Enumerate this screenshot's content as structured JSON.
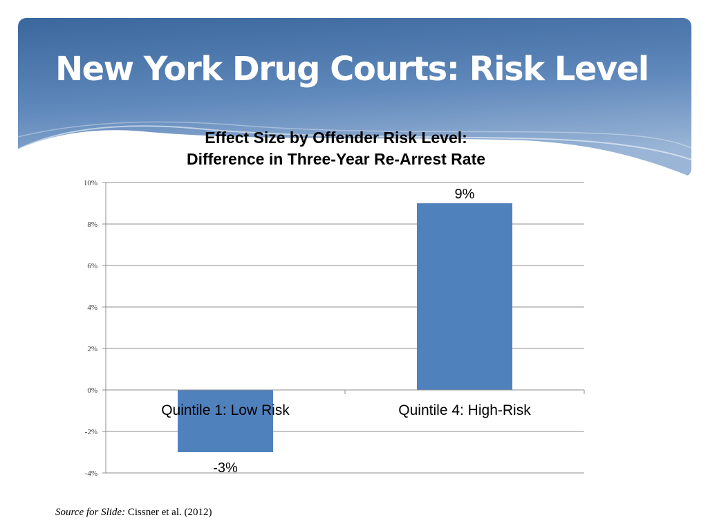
{
  "slide": {
    "title": "New York Drug Courts: Risk Level",
    "source_label": "Source for Slide:",
    "source_text": "Cissner et al. (2012)"
  },
  "colors": {
    "bar": "#4f81bd",
    "grid": "#8c8c8c",
    "header_dark": "#3d6aa0",
    "header_light": "#a9c0dc"
  },
  "chart_data": {
    "type": "bar",
    "title": "Effect Size by Offender Risk Level:",
    "subtitle": "Difference in Three-Year Re-Arrest Rate",
    "xlabel": "",
    "ylabel": "",
    "categories": [
      "Quintile 1: Low Risk",
      "Quintile 4: High-Risk"
    ],
    "values": [
      -3,
      9
    ],
    "value_labels": [
      "-3%",
      "9%"
    ],
    "ylim": [
      -4,
      10
    ],
    "yticks": [
      -4,
      -2,
      0,
      2,
      4,
      6,
      8,
      10
    ],
    "ytick_labels": [
      "-4%",
      "-2%",
      "0%",
      "2%",
      "4%",
      "6%",
      "8%",
      "10%"
    ],
    "grid": true,
    "legend": "none"
  }
}
